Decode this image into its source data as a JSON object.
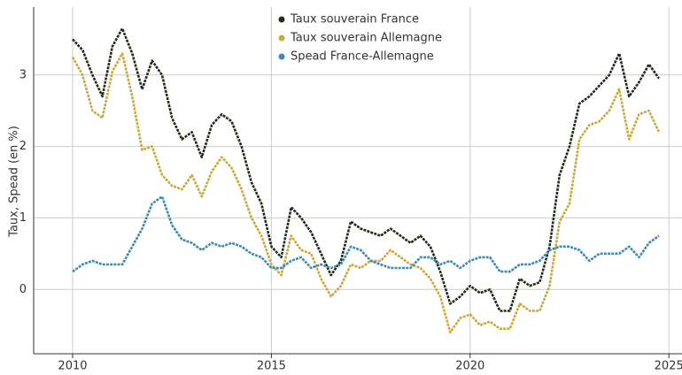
{
  "chart_data": {
    "type": "line",
    "y_label": "Taux, Spead (en %)",
    "x": [
      2010,
      2010.25,
      2010.5,
      2010.75,
      2011,
      2011.25,
      2011.5,
      2011.75,
      2012,
      2012.25,
      2012.5,
      2012.75,
      2013,
      2013.25,
      2013.5,
      2013.75,
      2014,
      2014.25,
      2014.5,
      2014.75,
      2015,
      2015.25,
      2015.5,
      2015.75,
      2016,
      2016.25,
      2016.5,
      2016.75,
      2017,
      2017.25,
      2017.5,
      2017.75,
      2018,
      2018.25,
      2018.5,
      2018.75,
      2019,
      2019.25,
      2019.5,
      2019.75,
      2020,
      2020.25,
      2020.5,
      2020.75,
      2021,
      2021.25,
      2021.5,
      2021.75,
      2022,
      2022.25,
      2022.5,
      2022.75,
      2023,
      2023.25,
      2023.5,
      2023.75,
      2024,
      2024.25,
      2024.5,
      2024.75
    ],
    "series": [
      {
        "name": "Taux souverain France",
        "color": "#1f2d16",
        "values": [
          3.5,
          3.35,
          3.0,
          2.7,
          3.4,
          3.65,
          3.3,
          2.8,
          3.2,
          3.0,
          2.4,
          2.1,
          2.2,
          1.85,
          2.3,
          2.45,
          2.35,
          2.0,
          1.5,
          1.2,
          0.6,
          0.45,
          1.15,
          1.0,
          0.8,
          0.5,
          0.2,
          0.4,
          0.95,
          0.85,
          0.8,
          0.75,
          0.85,
          0.75,
          0.65,
          0.75,
          0.6,
          0.25,
          -0.2,
          -0.1,
          0.05,
          -0.05,
          0.0,
          -0.3,
          -0.3,
          0.15,
          0.05,
          0.1,
          0.6,
          1.6,
          2.0,
          2.6,
          2.7,
          2.85,
          3.0,
          3.3,
          2.7,
          2.9,
          3.15,
          2.95
        ]
      },
      {
        "name": "Taux souverain Allemagne",
        "color": "#c9a93a",
        "values": [
          3.25,
          3.0,
          2.5,
          2.4,
          3.05,
          3.3,
          2.7,
          1.95,
          2.0,
          1.6,
          1.45,
          1.4,
          1.6,
          1.3,
          1.65,
          1.85,
          1.7,
          1.4,
          1.0,
          0.75,
          0.35,
          0.2,
          0.75,
          0.55,
          0.5,
          0.15,
          -0.1,
          0.05,
          0.35,
          0.3,
          0.4,
          0.4,
          0.55,
          0.45,
          0.35,
          0.3,
          0.15,
          -0.1,
          -0.6,
          -0.4,
          -0.35,
          -0.5,
          -0.45,
          -0.55,
          -0.55,
          -0.2,
          -0.3,
          -0.3,
          0.05,
          0.95,
          1.2,
          2.1,
          2.3,
          2.35,
          2.5,
          2.8,
          2.1,
          2.45,
          2.5,
          2.2
        ]
      },
      {
        "name": "Spead France-Allemagne",
        "color": "#3d8ab0",
        "values": [
          0.25,
          0.35,
          0.4,
          0.35,
          0.35,
          0.35,
          0.6,
          0.85,
          1.2,
          1.3,
          0.9,
          0.7,
          0.65,
          0.55,
          0.65,
          0.6,
          0.65,
          0.6,
          0.5,
          0.45,
          0.3,
          0.3,
          0.4,
          0.45,
          0.3,
          0.35,
          0.3,
          0.35,
          0.6,
          0.55,
          0.4,
          0.35,
          0.3,
          0.3,
          0.3,
          0.45,
          0.45,
          0.35,
          0.4,
          0.3,
          0.4,
          0.45,
          0.45,
          0.25,
          0.25,
          0.35,
          0.35,
          0.4,
          0.55,
          0.6,
          0.6,
          0.55,
          0.4,
          0.5,
          0.5,
          0.5,
          0.6,
          0.45,
          0.65,
          0.75
        ]
      }
    ],
    "xlim": [
      2009.02,
      2025.33
    ],
    "xticks": [
      2010,
      2015,
      2020,
      2025
    ],
    "ylim": [
      -0.9,
      3.95
    ],
    "yticks": [
      0,
      1,
      2,
      3
    ],
    "grid": true,
    "legend": "top"
  }
}
